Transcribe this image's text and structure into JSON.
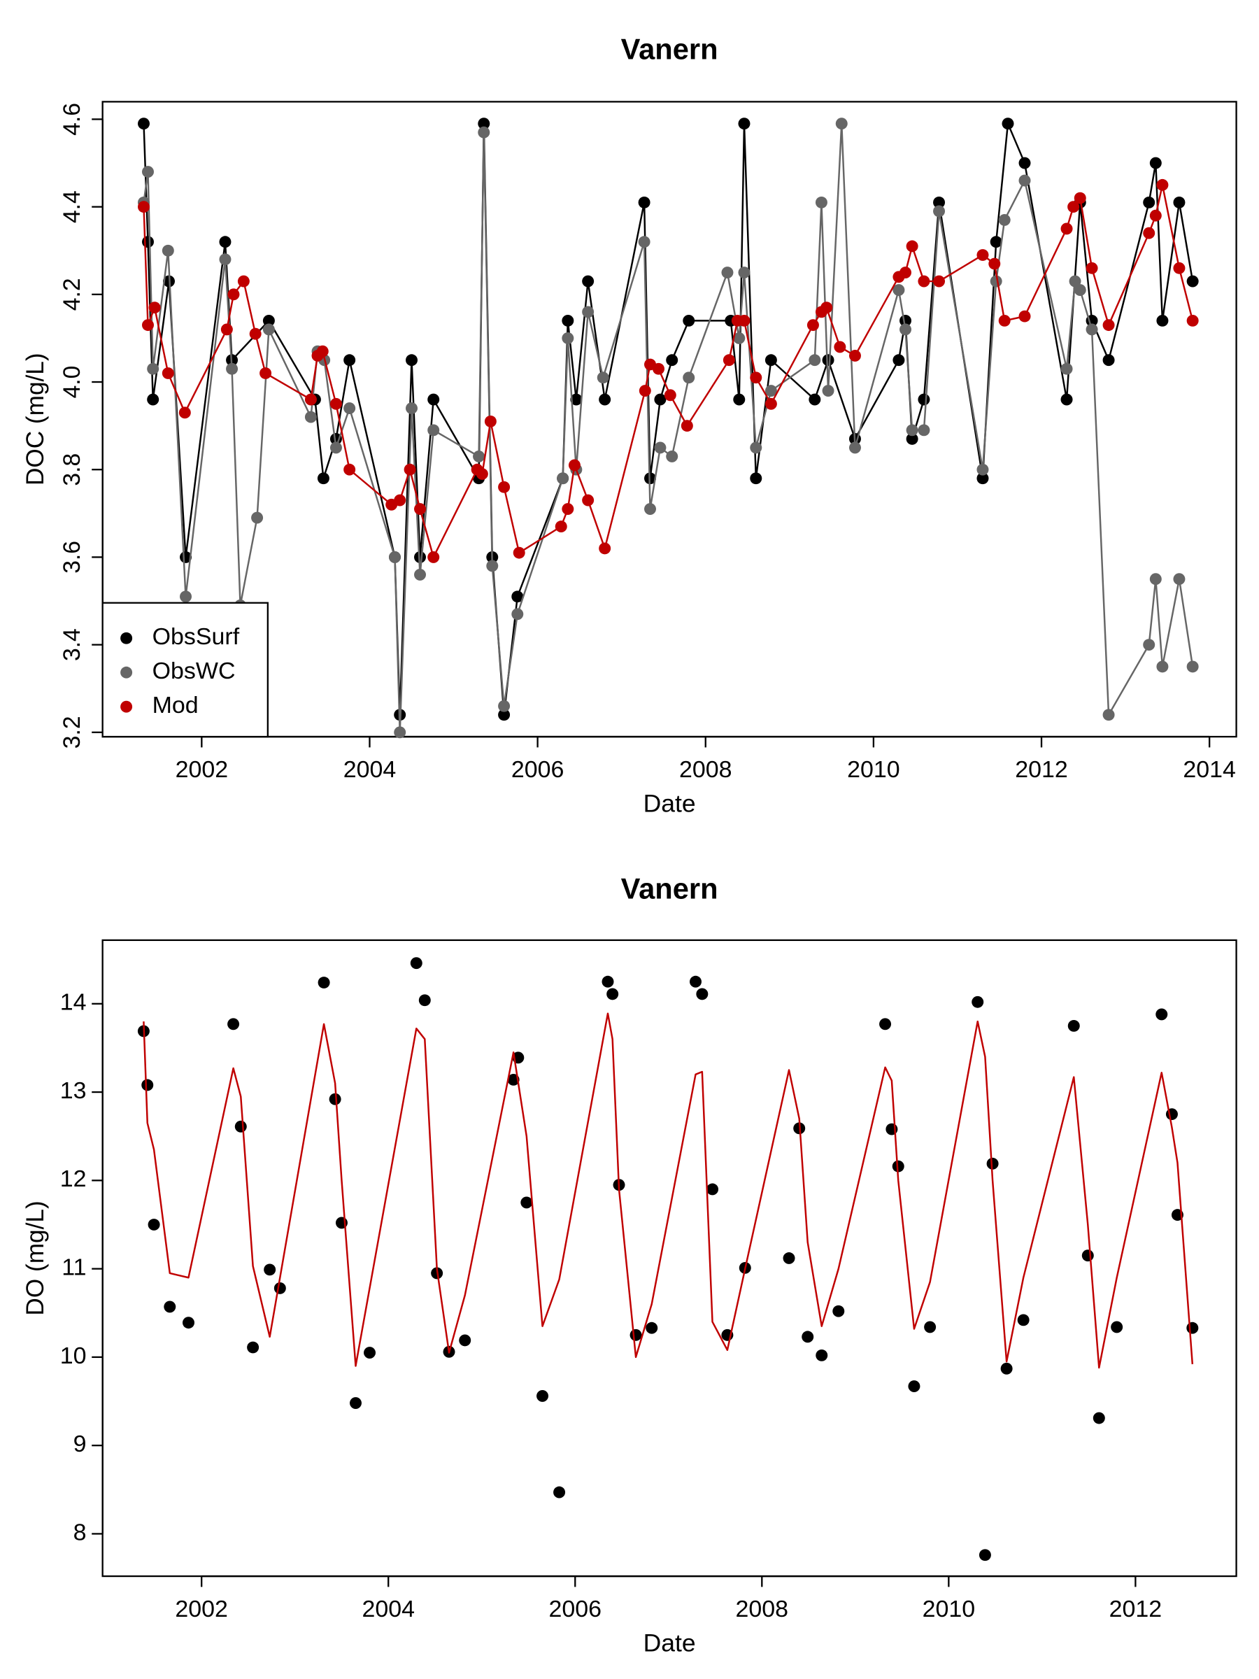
{
  "chart_data": [
    {
      "type": "line",
      "title": "Vanern",
      "x_label": "Date",
      "y_label": "DOC (mg/L)",
      "xlim": [
        2000.82,
        2014.32
      ],
      "ylim": [
        3.19,
        4.64
      ],
      "xticks": [
        2002,
        2004,
        2006,
        2008,
        2010,
        2012,
        2014
      ],
      "yticks": [
        3.2,
        3.4,
        3.6,
        3.8,
        {
          "value": 4,
          "label": "4.0"
        },
        4.2,
        4.4,
        4.6
      ],
      "legend": "bottom left",
      "series": [
        {
          "name": "ObsSurf",
          "color": "#000000",
          "mode": "lines+markers",
          "x": [
            2001.31,
            2001.36,
            2001.42,
            2001.61,
            2001.81,
            2002.28,
            2002.36,
            2002.8,
            2003.35,
            2003.45,
            2003.6,
            2003.76,
            2004.3,
            2004.36,
            2004.5,
            2004.6,
            2004.76,
            2005.3,
            2005.36,
            2005.46,
            2005.6,
            2005.76,
            2006.3,
            2006.36,
            2006.46,
            2006.6,
            2006.8,
            2007.27,
            2007.34,
            2007.46,
            2007.6,
            2007.8,
            2008.3,
            2008.4,
            2008.46,
            2008.6,
            2008.78,
            2009.3,
            2009.46,
            2009.78,
            2010.3,
            2010.38,
            2010.46,
            2010.6,
            2010.78,
            2011.3,
            2011.46,
            2011.6,
            2011.8,
            2012.3,
            2012.46,
            2012.6,
            2012.8,
            2013.28,
            2013.36,
            2013.44,
            2013.64,
            2013.8
          ],
          "values": [
            4.59,
            4.32,
            3.96,
            4.23,
            3.6,
            4.32,
            4.05,
            4.14,
            3.96,
            3.78,
            3.87,
            4.05,
            3.6,
            3.24,
            4.05,
            3.6,
            3.96,
            3.78,
            4.59,
            3.6,
            3.24,
            3.51,
            3.78,
            4.14,
            3.96,
            4.23,
            3.96,
            4.41,
            3.78,
            3.96,
            4.05,
            4.14,
            4.14,
            3.96,
            4.59,
            3.78,
            4.05,
            3.96,
            4.05,
            3.87,
            4.05,
            4.14,
            3.87,
            3.96,
            4.41,
            3.78,
            4.32,
            4.59,
            4.5,
            3.96,
            4.41,
            4.14,
            4.05,
            4.41,
            4.5,
            4.14,
            4.41,
            4.23
          ]
        },
        {
          "name": "ObsWC",
          "color": "#666666",
          "mode": "lines+markers",
          "x": [
            2001.31,
            2001.36,
            2001.42,
            2001.6,
            2001.81,
            2002.28,
            2002.36,
            2002.46,
            2002.66,
            2002.8,
            2003.3,
            2003.38,
            2003.46,
            2003.6,
            2003.76,
            2004.3,
            2004.36,
            2004.5,
            2004.6,
            2004.76,
            2005.3,
            2005.36,
            2005.46,
            2005.6,
            2005.76,
            2006.3,
            2006.36,
            2006.46,
            2006.6,
            2006.78,
            2007.27,
            2007.34,
            2007.46,
            2007.6,
            2007.8,
            2008.26,
            2008.4,
            2008.46,
            2008.6,
            2008.78,
            2009.3,
            2009.38,
            2009.46,
            2009.62,
            2009.78,
            2010.3,
            2010.38,
            2010.46,
            2010.6,
            2010.78,
            2011.3,
            2011.46,
            2011.56,
            2011.8,
            2012.3,
            2012.4,
            2012.46,
            2012.6,
            2012.8,
            2013.28,
            2013.36,
            2013.44,
            2013.64,
            2013.8
          ],
          "values": [
            4.41,
            4.48,
            4.03,
            4.3,
            3.51,
            4.28,
            4.03,
            3.49,
            3.69,
            4.12,
            3.92,
            4.07,
            4.05,
            3.85,
            3.94,
            3.6,
            3.2,
            3.94,
            3.56,
            3.89,
            3.83,
            4.57,
            3.58,
            3.26,
            3.47,
            3.78,
            4.1,
            3.8,
            4.16,
            4.01,
            4.32,
            3.71,
            3.85,
            3.83,
            4.01,
            4.25,
            4.1,
            4.25,
            3.85,
            3.98,
            4.05,
            4.41,
            3.98,
            4.59,
            3.85,
            4.21,
            4.12,
            3.89,
            3.89,
            4.39,
            3.8,
            4.23,
            4.37,
            4.46,
            4.03,
            4.23,
            4.21,
            4.12,
            3.24,
            3.4,
            3.55,
            3.35,
            3.55,
            3.35
          ]
        },
        {
          "name": "Mod",
          "color": "#c00000",
          "mode": "lines+markers",
          "x": [
            2001.31,
            2001.36,
            2001.44,
            2001.6,
            2001.8,
            2002.3,
            2002.38,
            2002.5,
            2002.64,
            2002.76,
            2003.3,
            2003.38,
            2003.44,
            2003.6,
            2003.76,
            2004.26,
            2004.36,
            2004.48,
            2004.6,
            2004.76,
            2005.28,
            2005.34,
            2005.44,
            2005.6,
            2005.78,
            2006.28,
            2006.36,
            2006.44,
            2006.6,
            2006.8,
            2007.28,
            2007.34,
            2007.44,
            2007.58,
            2007.78,
            2008.28,
            2008.38,
            2008.46,
            2008.6,
            2008.78,
            2009.28,
            2009.38,
            2009.44,
            2009.6,
            2009.78,
            2010.3,
            2010.38,
            2010.46,
            2010.6,
            2010.78,
            2011.3,
            2011.44,
            2011.56,
            2011.8,
            2012.3,
            2012.38,
            2012.46,
            2012.6,
            2012.8,
            2013.28,
            2013.36,
            2013.44,
            2013.64,
            2013.8
          ],
          "values": [
            4.4,
            4.13,
            4.17,
            4.02,
            3.93,
            4.12,
            4.2,
            4.23,
            4.11,
            4.02,
            3.96,
            4.06,
            4.07,
            3.95,
            3.8,
            3.72,
            3.73,
            3.8,
            3.71,
            3.6,
            3.8,
            3.79,
            3.91,
            3.76,
            3.61,
            3.67,
            3.71,
            3.81,
            3.73,
            3.62,
            3.98,
            4.04,
            4.03,
            3.97,
            3.9,
            4.05,
            4.14,
            4.14,
            4.01,
            3.95,
            4.13,
            4.16,
            4.17,
            4.08,
            4.06,
            4.24,
            4.25,
            4.31,
            4.23,
            4.23,
            4.29,
            4.27,
            4.14,
            4.15,
            4.35,
            4.4,
            4.42,
            4.26,
            4.13,
            4.34,
            4.38,
            4.45,
            4.26,
            4.14
          ]
        }
      ]
    },
    {
      "type": "line",
      "title": "Vanern",
      "x_label": "Date",
      "y_label": "DO (mg/L)",
      "xlim": [
        2000.94,
        2013.08
      ],
      "ylim": [
        7.52,
        14.72
      ],
      "xticks": [
        2002,
        2004,
        2006,
        2008,
        2010,
        2012
      ],
      "yticks": [
        8,
        9,
        10,
        11,
        12,
        13,
        14
      ],
      "series": [
        {
          "color": "#000000",
          "mode": "markers",
          "x": [
            2001.38,
            2001.42,
            2001.49,
            2001.66,
            2001.86,
            2002.34,
            2002.42,
            2002.55,
            2002.73,
            2002.84,
            2003.31,
            2003.43,
            2003.5,
            2003.65,
            2003.8,
            2004.3,
            2004.39,
            2004.52,
            2004.65,
            2004.82,
            2005.34,
            2005.39,
            2005.48,
            2005.65,
            2005.83,
            2006.35,
            2006.4,
            2006.47,
            2006.65,
            2006.82,
            2007.29,
            2007.36,
            2007.47,
            2007.63,
            2007.82,
            2008.29,
            2008.4,
            2008.49,
            2008.64,
            2008.82,
            2009.32,
            2009.39,
            2009.46,
            2009.63,
            2009.8,
            2010.31,
            2010.39,
            2010.47,
            2010.62,
            2010.8,
            2011.34,
            2011.49,
            2011.61,
            2011.8,
            2012.28,
            2012.39,
            2012.45,
            2012.61
          ],
          "values": [
            13.69,
            13.08,
            11.5,
            10.57,
            10.39,
            13.77,
            12.61,
            10.11,
            10.99,
            10.78,
            14.24,
            12.92,
            11.52,
            9.48,
            10.05,
            14.46,
            14.04,
            10.95,
            10.06,
            10.19,
            13.14,
            13.39,
            11.75,
            9.56,
            8.47,
            14.25,
            14.11,
            11.95,
            10.25,
            10.33,
            14.25,
            14.11,
            11.9,
            10.25,
            11.01,
            11.12,
            12.59,
            10.23,
            10.02,
            10.52,
            13.77,
            12.58,
            12.16,
            9.67,
            10.34,
            14.02,
            7.76,
            12.19,
            9.87,
            10.42,
            13.75,
            11.15,
            9.31,
            10.34,
            13.88,
            12.75,
            11.61,
            10.33
          ]
        },
        {
          "color": "#c00000",
          "mode": "lines",
          "x": [
            2001.38,
            2001.42,
            2001.49,
            2001.66,
            2001.86,
            2002.34,
            2002.42,
            2002.55,
            2002.73,
            2003.31,
            2003.43,
            2003.5,
            2003.65,
            2004.3,
            2004.39,
            2004.52,
            2004.65,
            2004.82,
            2005.34,
            2005.48,
            2005.65,
            2005.83,
            2006.35,
            2006.4,
            2006.47,
            2006.65,
            2006.82,
            2007.29,
            2007.36,
            2007.47,
            2007.63,
            2007.82,
            2008.29,
            2008.4,
            2008.49,
            2008.64,
            2008.82,
            2009.32,
            2009.39,
            2009.46,
            2009.63,
            2009.8,
            2010.31,
            2010.39,
            2010.47,
            2010.62,
            2010.8,
            2011.34,
            2011.49,
            2011.61,
            2011.8,
            2012.28,
            2012.39,
            2012.45,
            2012.61
          ],
          "values": [
            13.8,
            12.65,
            12.35,
            10.95,
            10.9,
            13.27,
            12.95,
            11.03,
            10.23,
            13.77,
            13.1,
            12.0,
            9.9,
            13.72,
            13.6,
            11.0,
            10.05,
            10.7,
            13.45,
            12.5,
            10.35,
            10.88,
            13.89,
            13.6,
            11.9,
            10.0,
            10.6,
            13.2,
            13.23,
            10.4,
            10.08,
            11.0,
            13.25,
            12.7,
            11.3,
            10.35,
            11.0,
            13.28,
            13.13,
            12.0,
            10.32,
            10.85,
            13.8,
            13.4,
            12.0,
            9.95,
            10.9,
            13.17,
            11.5,
            9.88,
            10.9,
            13.22,
            12.6,
            12.2,
            9.92
          ]
        }
      ]
    }
  ]
}
